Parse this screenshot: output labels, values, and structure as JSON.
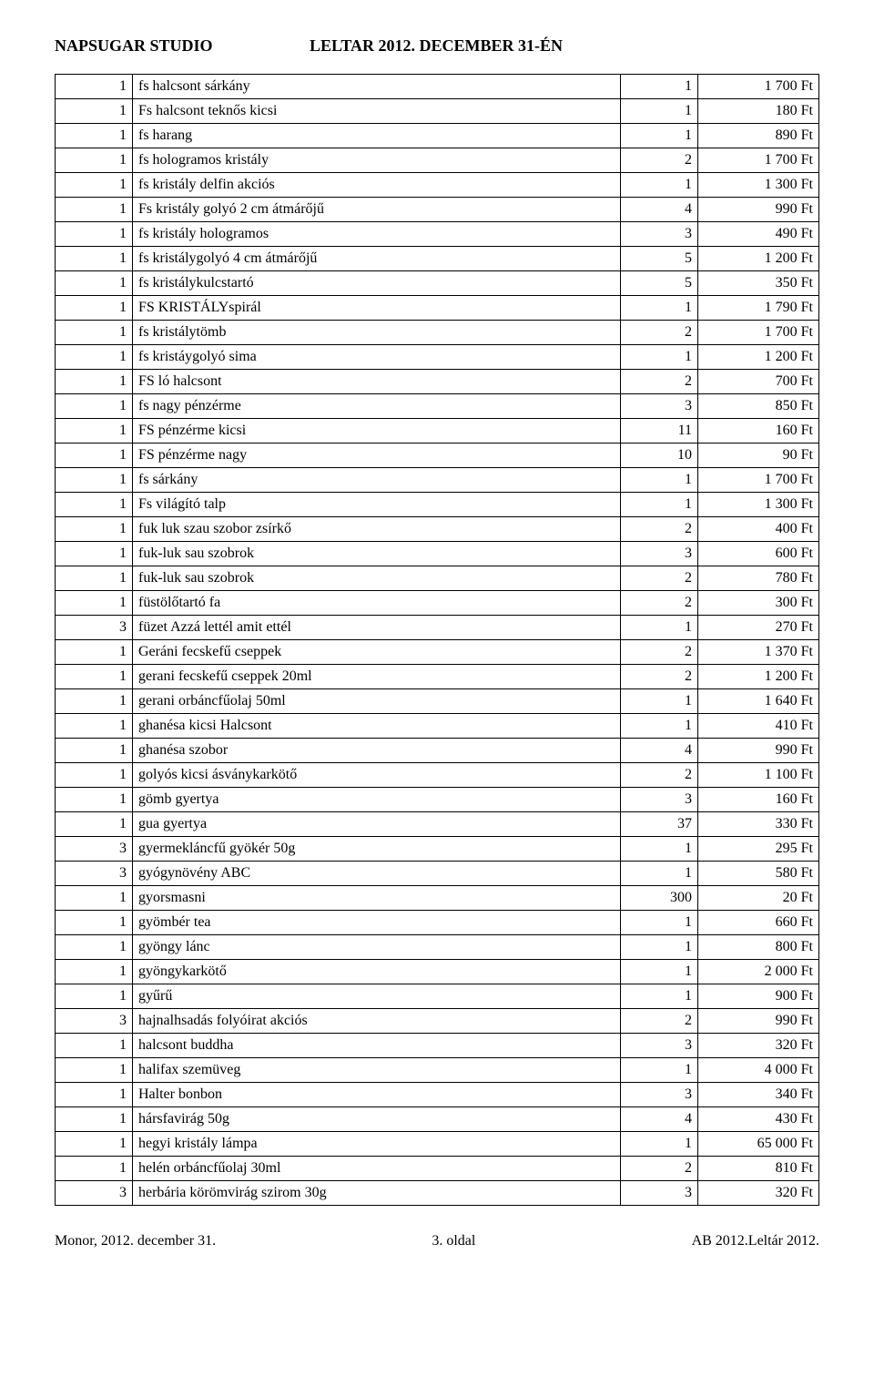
{
  "header": {
    "left": "NAPSUGAR STUDIO",
    "right": "LELTAR 2012. DECEMBER 31-ÉN"
  },
  "rows": [
    {
      "a": "1",
      "b": "fs halcsont sárkány",
      "c": "1",
      "d": "1 700 Ft"
    },
    {
      "a": "1",
      "b": "Fs halcsont teknős kicsi",
      "c": "1",
      "d": "180 Ft"
    },
    {
      "a": "1",
      "b": "fs harang",
      "c": "1",
      "d": "890 Ft"
    },
    {
      "a": "1",
      "b": "fs hologramos kristály",
      "c": "2",
      "d": "1 700 Ft"
    },
    {
      "a": "1",
      "b": "fs kristály delfin akciós",
      "c": "1",
      "d": "1 300 Ft"
    },
    {
      "a": "1",
      "b": "Fs kristály golyó 2 cm átmárőjű",
      "c": "4",
      "d": "990 Ft"
    },
    {
      "a": "1",
      "b": "fs kristály hologramos",
      "c": "3",
      "d": "490 Ft"
    },
    {
      "a": "1",
      "b": "fs kristálygolyó 4 cm átmárőjű",
      "c": "5",
      "d": "1 200 Ft"
    },
    {
      "a": "1",
      "b": "fs kristálykulcstartó",
      "c": "5",
      "d": "350 Ft"
    },
    {
      "a": "1",
      "b": "FS KRISTÁLYspirál",
      "c": "1",
      "d": "1 790 Ft"
    },
    {
      "a": "1",
      "b": "fs kristálytömb",
      "c": "2",
      "d": "1 700 Ft"
    },
    {
      "a": "1",
      "b": "fs kristáygolyó sima",
      "c": "1",
      "d": "1 200 Ft"
    },
    {
      "a": "1",
      "b": "FS ló halcsont",
      "c": "2",
      "d": "700 Ft"
    },
    {
      "a": "1",
      "b": "fs nagy pénzérme",
      "c": "3",
      "d": "850 Ft"
    },
    {
      "a": "1",
      "b": "FS pénzérme kicsi",
      "c": "11",
      "d": "160 Ft"
    },
    {
      "a": "1",
      "b": "FS pénzérme nagy",
      "c": "10",
      "d": "90 Ft"
    },
    {
      "a": "1",
      "b": "fs sárkány",
      "c": "1",
      "d": "1 700 Ft"
    },
    {
      "a": "1",
      "b": "Fs világító talp",
      "c": "1",
      "d": "1 300 Ft"
    },
    {
      "a": "1",
      "b": "fuk luk szau szobor zsírkő",
      "c": "2",
      "d": "400 Ft"
    },
    {
      "a": "1",
      "b": "fuk-luk sau szobrok",
      "c": "3",
      "d": "600 Ft"
    },
    {
      "a": "1",
      "b": "fuk-luk sau szobrok",
      "c": "2",
      "d": "780 Ft"
    },
    {
      "a": "1",
      "b": "füstölőtartó fa",
      "c": "2",
      "d": "300 Ft"
    },
    {
      "a": "3",
      "b": "füzet Azzá lettél amit ettél",
      "c": "1",
      "d": "270 Ft"
    },
    {
      "a": "1",
      "b": "Geráni fecskefű cseppek",
      "c": "2",
      "d": "1 370 Ft"
    },
    {
      "a": "1",
      "b": "gerani fecskefű cseppek 20ml",
      "c": "2",
      "d": "1 200 Ft"
    },
    {
      "a": "1",
      "b": "gerani orbáncfűolaj 50ml",
      "c": "1",
      "d": "1 640 Ft"
    },
    {
      "a": "1",
      "b": "ghanésa kicsi Halcsont",
      "c": "1",
      "d": "410 Ft"
    },
    {
      "a": "1",
      "b": "ghanésa szobor",
      "c": "4",
      "d": "990 Ft"
    },
    {
      "a": "1",
      "b": "golyós kicsi ásványkarkötő",
      "c": "2",
      "d": "1 100 Ft"
    },
    {
      "a": "1",
      "b": "gömb gyertya",
      "c": "3",
      "d": "160 Ft"
    },
    {
      "a": "1",
      "b": "gua gyertya",
      "c": "37",
      "d": "330 Ft"
    },
    {
      "a": "3",
      "b": "gyermekláncfű gyökér 50g",
      "c": "1",
      "d": "295 Ft"
    },
    {
      "a": "3",
      "b": "gyógynövény ABC",
      "c": "1",
      "d": "580 Ft"
    },
    {
      "a": "1",
      "b": "gyorsmasni",
      "c": "300",
      "d": "20 Ft"
    },
    {
      "a": "1",
      "b": "gyömbér tea",
      "c": "1",
      "d": "660 Ft"
    },
    {
      "a": "1",
      "b": "gyöngy lánc",
      "c": "1",
      "d": "800 Ft"
    },
    {
      "a": "1",
      "b": "gyöngykarkötő",
      "c": "1",
      "d": "2 000 Ft"
    },
    {
      "a": "1",
      "b": "gyűrű",
      "c": "1",
      "d": "900 Ft"
    },
    {
      "a": "3",
      "b": "hajnalhsadás folyóirat akciós",
      "c": "2",
      "d": "990 Ft"
    },
    {
      "a": "1",
      "b": "halcsont buddha",
      "c": "3",
      "d": "320 Ft"
    },
    {
      "a": "1",
      "b": "halifax szemüveg",
      "c": "1",
      "d": "4 000 Ft"
    },
    {
      "a": "1",
      "b": "Halter bonbon",
      "c": "3",
      "d": "340 Ft"
    },
    {
      "a": "1",
      "b": "hársfavirág 50g",
      "c": "4",
      "d": "430 Ft"
    },
    {
      "a": "1",
      "b": "hegyi kristály lámpa",
      "c": "1",
      "d": "65 000 Ft"
    },
    {
      "a": "1",
      "b": "helén orbáncfűolaj 30ml",
      "c": "2",
      "d": "810 Ft"
    },
    {
      "a": "3",
      "b": "herbária körömvirág szirom 30g",
      "c": "3",
      "d": "320 Ft"
    }
  ],
  "footer": {
    "left": "Monor, 2012. december 31.",
    "center": "3. oldal",
    "right": "AB 2012.Leltár 2012."
  }
}
